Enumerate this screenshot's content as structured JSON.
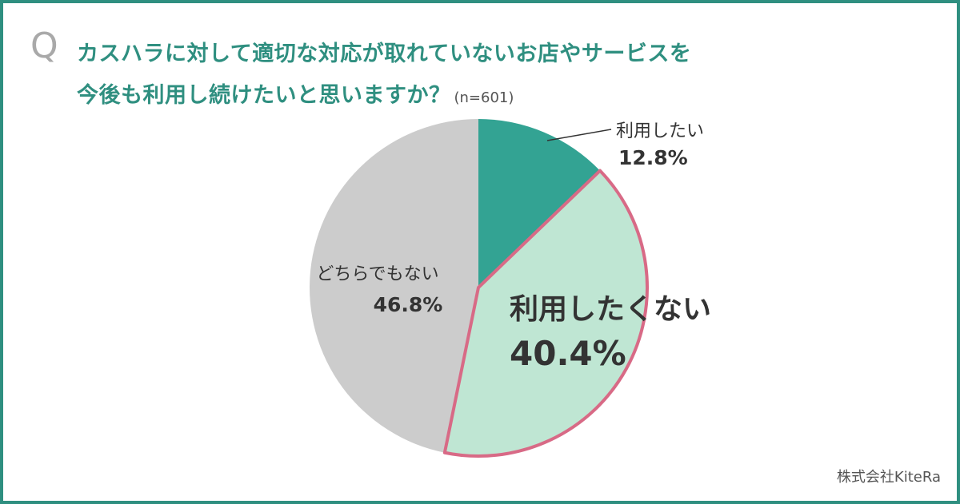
{
  "question": {
    "mark": "Q",
    "line1": "カスハラに対して適切な対応が取れていないお店やサービスを",
    "line2": "今後も利用し続けたいと思いますか？",
    "sample": "(n=601)"
  },
  "chart_data": {
    "type": "pie",
    "title": "カスハラに対して適切な対応が取れていないお店やサービスを今後も利用し続けたいと思いますか？",
    "slices": [
      {
        "label": "利用したい",
        "value": 12.8,
        "value_label": "12.8%",
        "color": "#33a393"
      },
      {
        "label": "利用したくない",
        "value": 40.4,
        "value_label": "40.4%",
        "color": "#bfe6d3",
        "highlight": true,
        "outline": "#d86a86"
      },
      {
        "label": "どちらでもない",
        "value": 46.8,
        "value_label": "46.8%",
        "color": "#cccccc"
      }
    ],
    "start": "12 o'clock",
    "direction": "clockwise"
  },
  "credit": "株式会社KiteRa",
  "colors": {
    "frame": "#2f8f80",
    "title": "#2f8f80",
    "label_text": "#333333"
  }
}
